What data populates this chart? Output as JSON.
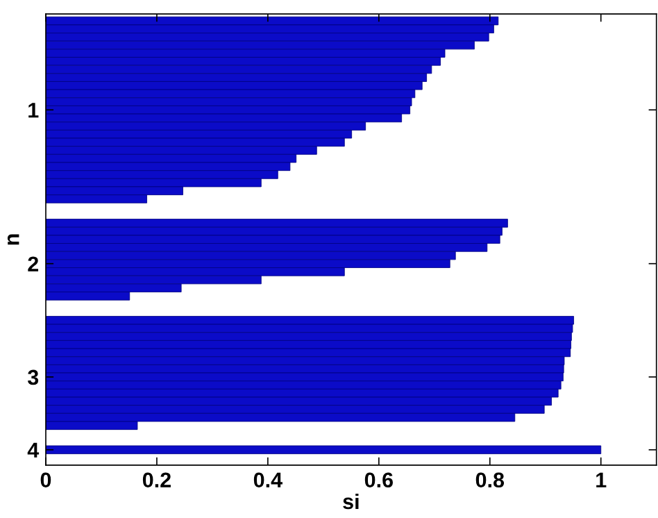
{
  "chart_data": {
    "type": "bar",
    "orientation": "horizontal",
    "xlabel": "si",
    "ylabel": "n",
    "color": "#0b0bc8",
    "categories": [
      null,
      null,
      null,
      null,
      null,
      null,
      null,
      null,
      null,
      null,
      null,
      "1",
      null,
      null,
      null,
      null,
      null,
      null,
      null,
      null,
      null,
      null,
      null,
      null,
      null,
      null,
      null,
      null,
      null,
      null,
      "2",
      null,
      null,
      null,
      null,
      null,
      null,
      null,
      null,
      null,
      null,
      null,
      null,
      null,
      "3",
      null,
      null,
      null,
      null,
      null,
      null,
      null,
      null,
      "4"
    ],
    "values": [
      0.815,
      0.807,
      0.798,
      0.772,
      0.719,
      0.711,
      0.695,
      0.686,
      0.678,
      0.665,
      0.659,
      0.656,
      0.641,
      0.576,
      0.551,
      0.538,
      0.488,
      0.451,
      0.44,
      0.418,
      0.388,
      0.247,
      0.182,
      null,
      null,
      0.832,
      0.822,
      0.818,
      0.795,
      0.738,
      0.728,
      0.538,
      0.388,
      0.244,
      0.151,
      null,
      null,
      0.951,
      0.949,
      0.947,
      0.946,
      0.945,
      0.934,
      0.933,
      0.932,
      0.928,
      0.923,
      0.911,
      0.898,
      0.845,
      0.165,
      null,
      null,
      1.0
    ],
    "xlim": [
      0,
      1.1
    ],
    "xticks": [
      0,
      0.2,
      0.4,
      0.6,
      0.8,
      1
    ],
    "grid": false,
    "legend": false
  }
}
